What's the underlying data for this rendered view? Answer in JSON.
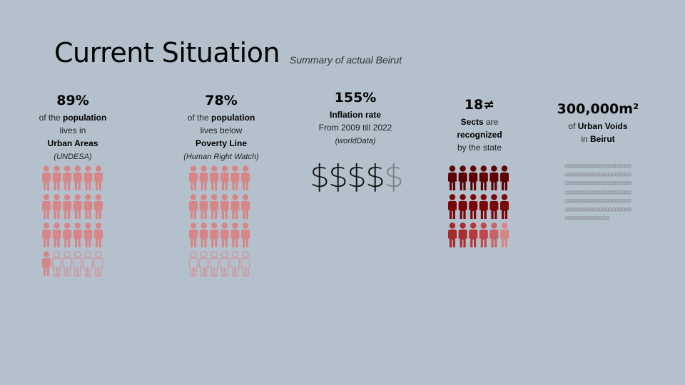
{
  "header": {
    "title": "Current Situation",
    "subtitle": "Summary of actual Beirut"
  },
  "stats": [
    {
      "value": "89%",
      "line1_pre": "of the ",
      "line1_bold": "population",
      "line2": "lives in",
      "line3_bold": "Urban Areas",
      "source": "UNDESA",
      "icon": "person-icon",
      "grid": {
        "total": 24,
        "filled": 19,
        "columns": 6,
        "filled_color": "#d68686",
        "empty_color": "#d68686"
      }
    },
    {
      "value": "78%",
      "line1_pre": "of the ",
      "line1_bold": "population",
      "line2": "lives below",
      "line3_bold": "Poverty Line",
      "source": "Human Right Watch",
      "icon": "person-icon",
      "grid": {
        "total": 24,
        "filled": 18,
        "columns": 6,
        "filled_color": "#d68686",
        "empty_color": "#d68686"
      }
    },
    {
      "value": "155%",
      "line1_bold": "Inflation rate",
      "line2": "From 2009 till 2022",
      "source": "worldData",
      "icon": "dollar-icon",
      "dollars": {
        "dark": 4,
        "dim": 1,
        "glyph": "$"
      }
    },
    {
      "value": "18≠",
      "line1_bold": "Sects",
      "line1_post": " are",
      "line2_bold": "recognized",
      "line3": "by the state",
      "icon": "person-icon",
      "colors": [
        "#5e0000",
        "#5e0000",
        "#5e0000",
        "#5e0000",
        "#5e0000",
        "#5e0000",
        "#7a0507",
        "#7a0507",
        "#7a0507",
        "#7a0507",
        "#7a0507",
        "#7a0507",
        "#a52a2a",
        "#a82d2e",
        "#b23a3a",
        "#bc4a4a",
        "#c86363",
        "#d68686"
      ]
    },
    {
      "value": "300,000m²",
      "line1_pre": "of ",
      "line1_bold": "Urban Voids",
      "line2_pre": "in ",
      "line2_bold": "Beirut",
      "icon": "void-pattern-icon",
      "pattern": "⌀⌀⌀⌀⌀⌀⌀⌀⌀⌀⌀⌀⌀⌀⌀⌀⌀⌀⌀⌀⌀⌀⌀⌀⌀⌀⌀⌀⌀⌀⌀⌀⌀⌀⌀⌀⌀⌀⌀⌀⌀⌀⌀⌀⌀⌀⌀⌀⌀⌀⌀⌀⌀⌀⌀⌀⌀⌀⌀⌀⌀⌀⌀⌀⌀⌀⌀⌀⌀⌀⌀⌀⌀⌀⌀⌀⌀⌀⌀⌀⌀⌀⌀⌀⌀⌀⌀⌀⌀⌀⌀⌀⌀⌀⌀⌀⌀⌀⌀⌀⌀⌀⌀⌀⌀⌀⌀⌀⌀⌀⌀⌀⌀⌀⌀⌀⌀⌀⌀⌀⌀⌀⌀⌀⌀⌀⌀⌀⌀⌀⌀⌀⌀⌀⌀⌀⌀⌀⌀⌀"
    }
  ]
}
